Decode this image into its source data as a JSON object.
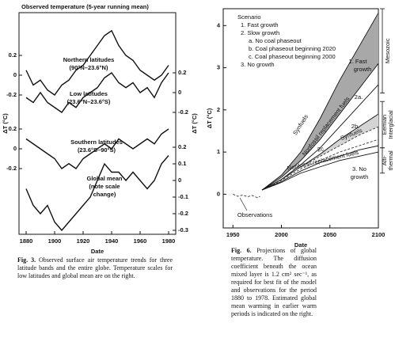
{
  "chart_data": [
    {
      "type": "line",
      "title": "Observed temperature (5-year running mean)",
      "xlabel": "Date",
      "ylabel": "ΔT (°C)",
      "y2label": "ΔT (°C)",
      "x": [
        1880,
        1885,
        1890,
        1895,
        1900,
        1905,
        1910,
        1915,
        1920,
        1925,
        1930,
        1935,
        1940,
        1945,
        1950,
        1955,
        1960,
        1965,
        1970,
        1975,
        1980
      ],
      "xlim": [
        1875,
        1985
      ],
      "xticks": [
        1880,
        1900,
        1920,
        1940,
        1960,
        1980
      ],
      "series": [
        {
          "name": "Northern latitudes",
          "note": [
            "(90°N–23.6°N)"
          ],
          "axis": "y",
          "color": "#111111",
          "ylim": [
            -0.4,
            0.4
          ],
          "yticks": [
            0.2,
            0,
            -0.2
          ],
          "values": [
            0.05,
            -0.1,
            -0.05,
            -0.15,
            -0.2,
            -0.1,
            -0.05,
            0.05,
            0.1,
            0.2,
            0.3,
            0.4,
            0.45,
            0.3,
            0.2,
            0.15,
            0.05,
            0.0,
            -0.05,
            0.0,
            0.1
          ]
        },
        {
          "name": "Low latitudes",
          "note": [
            "(23.6°N–23.6°S)"
          ],
          "axis": "y2",
          "color": "#111111",
          "ylim": [
            -0.4,
            0.4
          ],
          "yticks": [
            0.2,
            0,
            -0.2
          ],
          "values": [
            -0.05,
            -0.1,
            0.0,
            -0.1,
            -0.15,
            -0.2,
            -0.1,
            -0.15,
            -0.05,
            0.0,
            0.05,
            0.15,
            0.2,
            0.1,
            0.05,
            0.1,
            0.0,
            0.05,
            -0.05,
            0.1,
            0.2
          ]
        },
        {
          "name": "Southern latitudes",
          "note": [
            "(23.6°S–90°S)"
          ],
          "axis": "y",
          "color": "#111111",
          "ylim": [
            -0.4,
            0.4
          ],
          "yticks": [
            0.2,
            0,
            -0.2
          ],
          "values": [
            0.1,
            0.05,
            0.0,
            -0.05,
            -0.1,
            -0.2,
            -0.15,
            -0.2,
            -0.1,
            -0.05,
            0.0,
            0.05,
            0.0,
            0.1,
            0.05,
            0.0,
            0.05,
            0.1,
            0.05,
            0.15,
            0.2
          ]
        },
        {
          "name": "Global mean",
          "note": [
            "(note scale",
            "change)"
          ],
          "axis": "y2",
          "color": "#111111",
          "ylim": [
            -0.3,
            0.3
          ],
          "yticks": [
            0.2,
            0.1,
            0,
            -0.1,
            -0.2,
            -0.3
          ],
          "values": [
            -0.05,
            -0.15,
            -0.2,
            -0.15,
            -0.25,
            -0.3,
            -0.25,
            -0.2,
            -0.15,
            -0.1,
            0.0,
            0.1,
            0.05,
            0.05,
            0.0,
            0.05,
            0.0,
            -0.05,
            0.0,
            0.1,
            0.15
          ]
        }
      ],
      "caption_label": "Fig. 3.",
      "caption": "Observed surface air temperature trends for three latitude bands and the entire globe. Temperature scales for low latitudes and global mean are on the right."
    },
    {
      "type": "line",
      "xlabel": "Date",
      "ylabel": "ΔT (°C)",
      "x": [
        1980,
        2000,
        2020,
        2040,
        2060,
        2080,
        2100
      ],
      "xlim": [
        1940,
        2100
      ],
      "xticks": [
        1950,
        2000,
        2050,
        2100
      ],
      "ylim": [
        -0.8,
        4.4
      ],
      "yticks": [
        0,
        1,
        2,
        3,
        4
      ],
      "legend": {
        "title": "Scenario",
        "items": [
          "1. Fast growth",
          "2. Slow growth",
          "a. No coal phaseout",
          "b. Coal phaseout beginning 2020",
          "c. Coal phaseout beginning 2000",
          "3. No growth"
        ]
      },
      "series": [
        {
          "name": "Observations",
          "color": "#333333",
          "dash": true,
          "x": [
            1950,
            1955,
            1960,
            1965,
            1970,
            1975,
            1978
          ],
          "values": [
            0.0,
            -0.05,
            -0.02,
            -0.06,
            -0.03,
            -0.08,
            -0.05
          ]
        },
        {
          "name": "Fast growth synfuels",
          "color": "#111111",
          "fill": "#a8a8a8",
          "values": [
            0.1,
            0.45,
            1.0,
            1.8,
            2.7,
            3.5,
            4.3
          ]
        },
        {
          "name": "Fast growth nonfossil",
          "color": "#111111",
          "values": [
            0.1,
            0.4,
            0.8,
            1.3,
            1.9,
            2.5,
            3.1
          ]
        },
        {
          "name": "2a",
          "color": "#111111",
          "values": [
            0.1,
            0.35,
            0.7,
            1.1,
            1.6,
            2.1,
            2.6
          ]
        },
        {
          "name": "Slow growth synfuels",
          "color": "#111111",
          "fill": "#d4d4d4",
          "values": [
            0.1,
            0.35,
            0.65,
            0.95,
            1.3,
            1.6,
            1.9
          ]
        },
        {
          "name": "2b",
          "color": "#333333",
          "dash": true,
          "values": [
            0.1,
            0.35,
            0.65,
            0.9,
            1.15,
            1.4,
            1.6
          ]
        },
        {
          "name": "2c",
          "color": "#333333",
          "dash": true,
          "values": [
            0.1,
            0.33,
            0.6,
            0.8,
            1.0,
            1.15,
            1.3
          ]
        },
        {
          "name": "Slow growth nonfossil",
          "color": "#111111",
          "values": [
            0.1,
            0.3,
            0.55,
            0.75,
            0.9,
            1.05,
            1.15
          ]
        },
        {
          "name": "No growth",
          "color": "#111111",
          "values": [
            0.1,
            0.28,
            0.5,
            0.65,
            0.8,
            0.9,
            1.0
          ]
        }
      ],
      "annotations": [
        "1. Fast",
        "growth",
        "Synfuels",
        "Nonfossil replacement fuels",
        "2a.",
        "2b.",
        "Synfuels",
        "2c",
        "Nonfossil replacement fuels",
        "3. No",
        "growth",
        "Observations"
      ],
      "ranges": [
        {
          "label": [
            "Mesozoic"
          ],
          "from": 2.4,
          "to": 4.4
        },
        {
          "label": [
            "Eemian",
            "Interglacial"
          ],
          "from": 1.1,
          "to": 2.2
        },
        {
          "label": [
            "Alti-",
            "thermal"
          ],
          "from": 0.5,
          "to": 1.1
        }
      ],
      "caption_label": "Fig. 6.",
      "caption": "Projections of global temperature. The diffusion coefficient beneath the ocean mixed layer is 1.2 cm² sec⁻¹, as required for best fit of the model and observations for the period 1880 to 1978. Estimated global mean warming in earlier warm periods is indicated on the right."
    }
  ]
}
